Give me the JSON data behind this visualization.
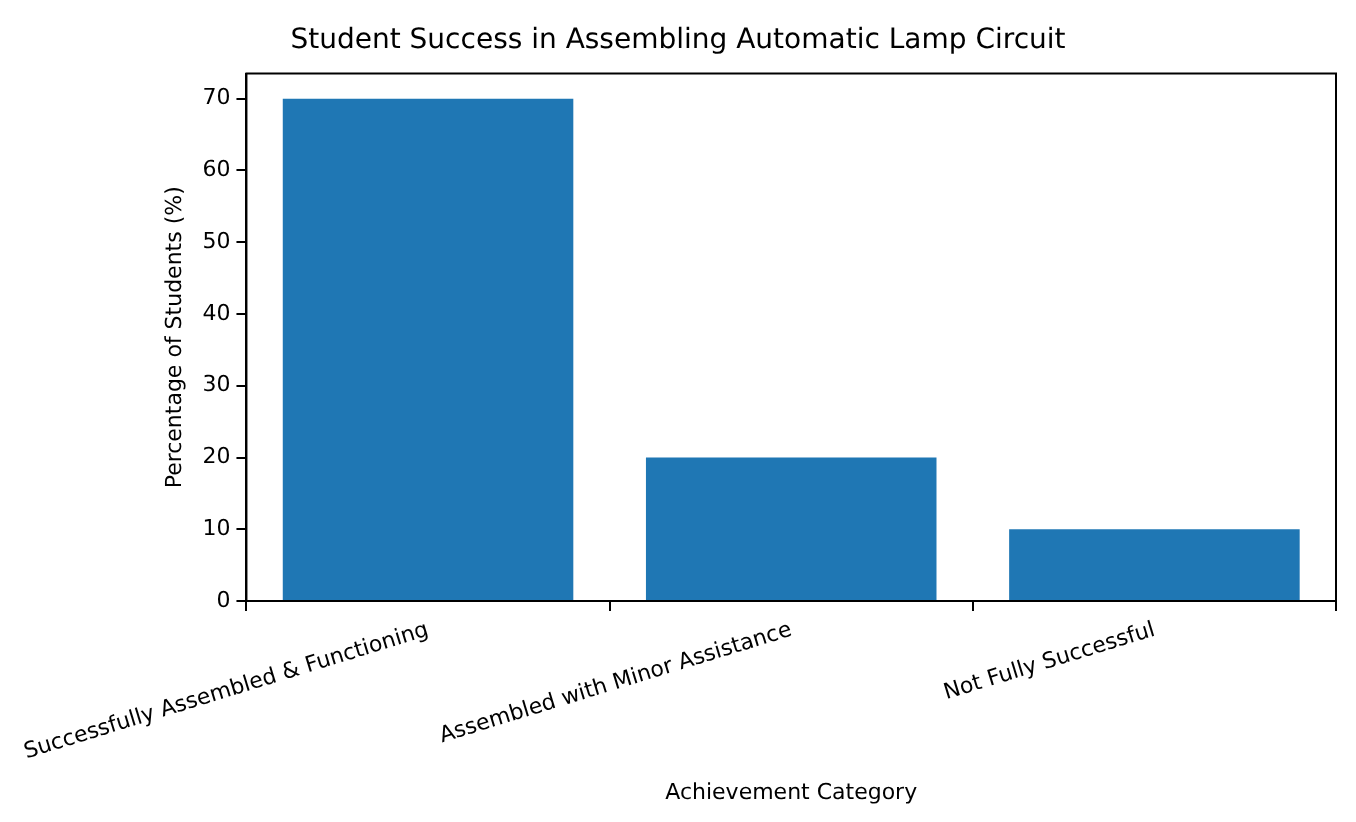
{
  "chart_data": {
    "type": "bar",
    "title": "Student Success in Assembling Automatic Lamp Circuit",
    "xlabel": "Achievement Category",
    "ylabel": "Percentage of Students (%)",
    "categories": [
      "Successfully Assembled & Functioning",
      "Assembled with Minor Assistance",
      "Not Fully Successful"
    ],
    "values": [
      70,
      20,
      10
    ],
    "color": "#1f77b4",
    "ylim": [
      0,
      73.5
    ],
    "yticks": [
      0,
      10,
      20,
      30,
      40,
      50,
      60,
      70
    ],
    "grid": false,
    "legend": false
  }
}
